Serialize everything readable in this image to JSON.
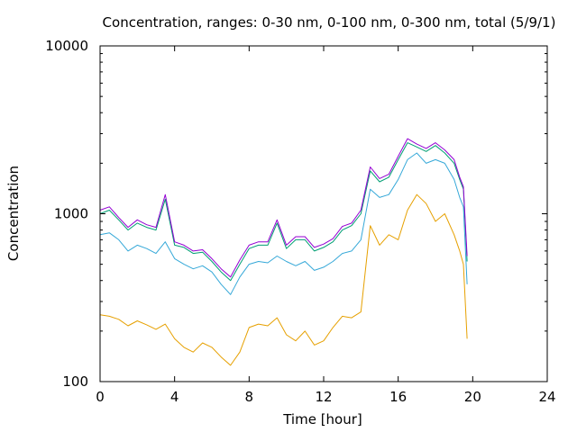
{
  "chart_data": {
    "type": "line",
    "title": "Concentration, ranges: 0-30 nm, 0-100 nm, 0-300 nm, total (5/9/1)",
    "xlabel": "Time [hour]",
    "ylabel": "Concentration",
    "xlim": [
      0,
      24
    ],
    "ylim": [
      100,
      10000
    ],
    "yscale": "log",
    "xticks": [
      0,
      4,
      8,
      12,
      16,
      20,
      24
    ],
    "yticks": [
      100,
      1000,
      10000
    ],
    "xtick_labels": [
      "0",
      "4",
      "8",
      "12",
      "16",
      "20",
      "24"
    ],
    "ytick_labels": [
      "100",
      "1000",
      "10000"
    ],
    "grid": false,
    "series": [
      {
        "color": "#e6a000",
        "x": [
          0,
          0.5,
          1,
          1.5,
          2,
          2.5,
          3,
          3.5,
          4,
          4.5,
          5,
          5.5,
          6,
          6.5,
          7,
          7.5,
          8,
          8.5,
          9,
          9.5,
          10,
          10.5,
          11,
          11.5,
          12,
          12.5,
          13,
          13.5,
          14,
          14.5,
          15,
          15.5,
          16,
          16.5,
          17,
          17.5,
          18,
          18.5,
          19,
          19.3,
          19.5,
          19.7
        ],
        "y": [
          250,
          245,
          235,
          215,
          230,
          218,
          205,
          220,
          180,
          160,
          150,
          170,
          160,
          140,
          125,
          150,
          210,
          220,
          215,
          240,
          190,
          175,
          200,
          165,
          175,
          210,
          245,
          240,
          260,
          850,
          650,
          750,
          700,
          1050,
          1300,
          1150,
          900,
          1000,
          750,
          600,
          500,
          180
        ]
      },
      {
        "color": "#35a8d8",
        "x": [
          0,
          0.5,
          1,
          1.5,
          2,
          2.5,
          3,
          3.5,
          4,
          4.5,
          5,
          5.5,
          6,
          6.5,
          7,
          7.5,
          8,
          8.5,
          9,
          9.5,
          10,
          10.5,
          11,
          11.5,
          12,
          12.5,
          13,
          13.5,
          14,
          14.5,
          15,
          15.5,
          16,
          16.5,
          17,
          17.5,
          18,
          18.5,
          19,
          19.3,
          19.5,
          19.7
        ],
        "y": [
          750,
          770,
          700,
          600,
          650,
          620,
          580,
          680,
          540,
          500,
          470,
          490,
          450,
          380,
          330,
          420,
          500,
          520,
          510,
          560,
          520,
          490,
          520,
          460,
          480,
          520,
          580,
          600,
          700,
          1400,
          1250,
          1300,
          1600,
          2100,
          2300,
          2000,
          2100,
          2000,
          1600,
          1250,
          1100,
          380
        ]
      },
      {
        "color": "#009e73",
        "x": [
          0,
          0.5,
          1,
          1.5,
          2,
          2.5,
          3,
          3.5,
          4,
          4.5,
          5,
          5.5,
          6,
          6.5,
          7,
          7.5,
          8,
          8.5,
          9,
          9.5,
          10,
          10.5,
          11,
          11.5,
          12,
          12.5,
          13,
          13.5,
          14,
          14.5,
          15,
          15.5,
          16,
          16.5,
          17,
          17.5,
          18,
          18.5,
          19,
          19.3,
          19.5,
          19.7
        ],
        "y": [
          1000,
          1050,
          920,
          800,
          880,
          830,
          800,
          1220,
          650,
          630,
          580,
          590,
          520,
          450,
          400,
          500,
          620,
          650,
          650,
          880,
          620,
          700,
          700,
          600,
          630,
          680,
          800,
          850,
          1000,
          1800,
          1550,
          1650,
          2100,
          2650,
          2500,
          2350,
          2550,
          2300,
          2000,
          1600,
          1400,
          520
        ]
      },
      {
        "color": "#9400d3",
        "x": [
          0,
          0.5,
          1,
          1.5,
          2,
          2.5,
          3,
          3.5,
          4,
          4.5,
          5,
          5.5,
          6,
          6.5,
          7,
          7.5,
          8,
          8.5,
          9,
          9.5,
          10,
          10.5,
          11,
          11.5,
          12,
          12.5,
          13,
          13.5,
          14,
          14.5,
          15,
          15.5,
          16,
          16.5,
          17,
          17.5,
          18,
          18.5,
          19,
          19.3,
          19.5,
          19.7
        ],
        "y": [
          1050,
          1100,
          950,
          830,
          920,
          860,
          830,
          1300,
          680,
          650,
          600,
          610,
          540,
          470,
          420,
          530,
          650,
          680,
          680,
          920,
          650,
          730,
          730,
          630,
          660,
          710,
          840,
          880,
          1050,
          1900,
          1620,
          1720,
          2200,
          2800,
          2600,
          2450,
          2650,
          2400,
          2100,
          1650,
          1450,
          560
        ]
      }
    ]
  }
}
